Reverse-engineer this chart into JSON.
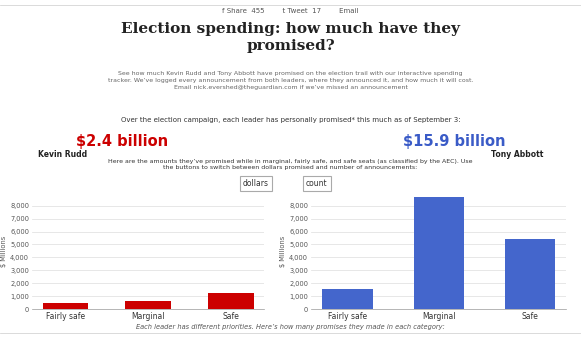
{
  "title": "Election spending: how much have they\npromised?",
  "subtitle": "See how much Kevin Rudd and Tony Abbott have promised on the election trail with our interactive spending\ntracker. We’ve logged every announcement from both leaders, where they announced it, and how much it will cost.\nEmail nick.evershed@theguardian.com if we’ve missed an announcement",
  "over_text": "Over the election campaign, each leader has personally promised* this much as of September 3:",
  "rudd_amount": "$2.4 billion",
  "abbott_amount": "$15.9 billion",
  "rudd_name": "Kevin Rudd",
  "abbott_name": "Tony Abbott",
  "rudd_amount_color": "#cc0000",
  "abbott_amount_color": "#3a5bc7",
  "middle_text": "Here are the amounts they’ve promised while in marginal, fairly safe, and safe seats (as classified by the AEC). Use\nthe buttons to switch between dollars promised and number of announcements:",
  "categories": [
    "Fairly safe",
    "Marginal",
    "Safe"
  ],
  "rudd_values": [
    500,
    650,
    1250
  ],
  "abbott_values": [
    1600,
    8700,
    5400
  ],
  "rudd_color": "#cc0000",
  "abbott_color": "#4466cc",
  "ylabel": "$ Millions",
  "ylim": [
    0,
    9000
  ],
  "yticks": [
    0,
    1000,
    2000,
    3000,
    4000,
    5000,
    6000,
    7000,
    8000
  ],
  "button_dollars": "dollars",
  "button_count": "count",
  "footer_text": "Each leader has different priorities. Here’s how many promises they made in each category:",
  "bg_color": "#ffffff",
  "share_bar": "f Share  455        t Tweet  17        Email"
}
